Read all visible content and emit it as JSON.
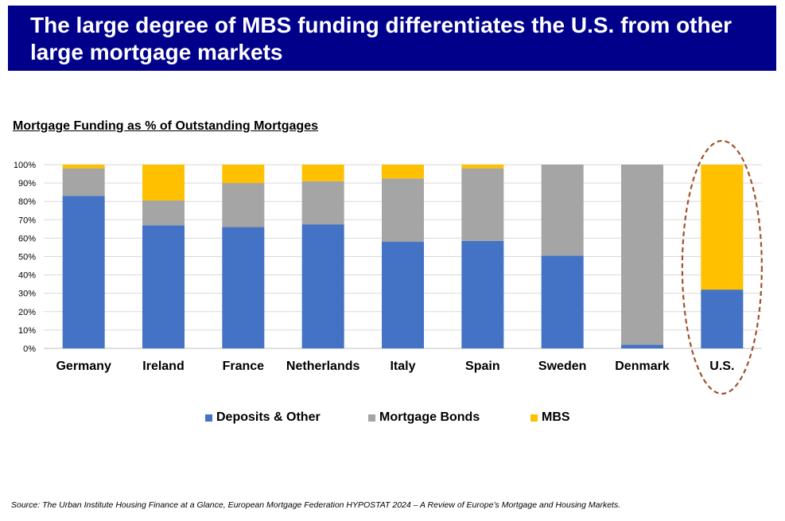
{
  "header": {
    "title": "The large degree of MBS funding differentiates the U.S. from other large mortgage markets"
  },
  "chart_data": {
    "type": "bar",
    "stacked": true,
    "title": "Mortgage Funding as % of Outstanding Mortgages",
    "xlabel": "",
    "ylabel": "",
    "ylim": [
      0,
      100
    ],
    "yticks": [
      "0%",
      "10%",
      "20%",
      "30%",
      "40%",
      "50%",
      "60%",
      "70%",
      "80%",
      "90%",
      "100%"
    ],
    "grid": true,
    "legend_position": "bottom",
    "categories": [
      "Germany",
      "Ireland",
      "France",
      "Netherlands",
      "Italy",
      "Spain",
      "Sweden",
      "Denmark",
      "U.S."
    ],
    "series": [
      {
        "name": "Deposits & Other",
        "color": "#4472c4",
        "values": [
          83,
          67,
          66,
          67.5,
          58,
          58.5,
          50.5,
          2,
          32
        ]
      },
      {
        "name": "Mortgage Bonds",
        "color": "#a5a5a5",
        "values": [
          15,
          13.5,
          24,
          23.5,
          34.5,
          39.5,
          49.5,
          98,
          0
        ]
      },
      {
        "name": "MBS",
        "color": "#ffc000",
        "values": [
          2,
          19.5,
          10,
          9,
          7.5,
          2,
          0,
          0,
          68
        ]
      }
    ],
    "highlight": {
      "category": "U.S.",
      "style": "dashed-ellipse",
      "color": "#a0522d"
    }
  },
  "footer": {
    "source": "Source: The Urban Institute Housing Finance at a Glance, European Mortgage Federation HYPOSTAT 2024 – A Review of Europe’s Mortgage and Housing Markets."
  }
}
